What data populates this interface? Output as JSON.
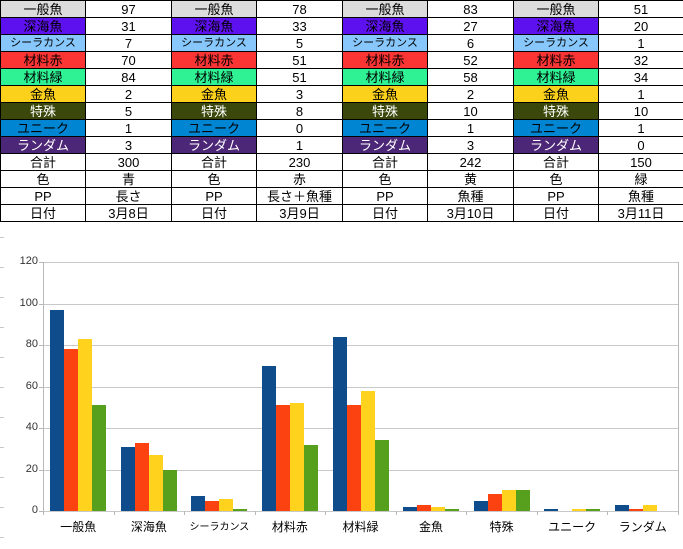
{
  "table": {
    "category_rows": [
      {
        "label": "一般魚",
        "bg": "#DCDCDC",
        "fg": "#000000",
        "values": [
          "97",
          "78",
          "83",
          "51"
        ]
      },
      {
        "label": "深海魚",
        "bg": "#5E11EF",
        "fg": "#000000",
        "values": [
          "31",
          "33",
          "27",
          "20"
        ]
      },
      {
        "label": "シーラカンス",
        "bg": "#87C7FB",
        "fg": "#000000",
        "values": [
          "7",
          "5",
          "6",
          "1"
        ]
      },
      {
        "label": "材料赤",
        "bg": "#FB3434",
        "fg": "#000000",
        "values": [
          "70",
          "51",
          "52",
          "32"
        ]
      },
      {
        "label": "材料緑",
        "bg": "#2FF294",
        "fg": "#000000",
        "values": [
          "84",
          "51",
          "58",
          "34"
        ]
      },
      {
        "label": "金魚",
        "bg": "#FCD11B",
        "fg": "#000000",
        "values": [
          "2",
          "3",
          "2",
          "1"
        ]
      },
      {
        "label": "特殊",
        "bg": "#3A490B",
        "fg": "#FFFFFF",
        "values": [
          "5",
          "8",
          "10",
          "10"
        ]
      },
      {
        "label": "ユニーク",
        "bg": "#0085D3",
        "fg": "#000000",
        "values": [
          "1",
          "0",
          "1",
          "1"
        ]
      },
      {
        "label": "ランダム",
        "bg": "#4C2777",
        "fg": "#FFFFFF",
        "values": [
          "3",
          "1",
          "3",
          "0"
        ]
      }
    ],
    "summary_rows": [
      {
        "label": "合計",
        "values": [
          "300",
          "230",
          "242",
          "150"
        ]
      },
      {
        "label": "色",
        "values": [
          "青",
          "赤",
          "黄",
          "緑"
        ]
      },
      {
        "label": "PP",
        "values": [
          "長さ",
          "長さ＋魚種",
          "魚種",
          "魚種"
        ]
      },
      {
        "label": "日付",
        "values": [
          "3月8日",
          "3月9日",
          "3月10日",
          "3月11日"
        ]
      }
    ]
  },
  "chart_data": {
    "type": "bar",
    "title": "",
    "categories": [
      "一般魚",
      "深海魚",
      "シーラカンス",
      "材料赤",
      "材料緑",
      "金魚",
      "特殊",
      "ユニーク",
      "ランダム"
    ],
    "series": [
      {
        "name": "3月8日",
        "color": "#0E4C8C",
        "values": [
          97,
          31,
          7,
          70,
          84,
          2,
          5,
          1,
          3
        ]
      },
      {
        "name": "3月9日",
        "color": "#FC4210",
        "values": [
          78,
          33,
          5,
          51,
          51,
          3,
          8,
          0,
          1
        ]
      },
      {
        "name": "3月10日",
        "color": "#FFD21E",
        "values": [
          83,
          27,
          6,
          52,
          58,
          2,
          10,
          1,
          3
        ]
      },
      {
        "name": "3月11日",
        "color": "#57A01E",
        "values": [
          51,
          20,
          1,
          32,
          34,
          1,
          10,
          1,
          0
        ]
      }
    ],
    "xlabel": "",
    "ylabel": "",
    "ylim": [
      0,
      120
    ],
    "yticks": [
      0,
      20,
      40,
      60,
      80,
      100,
      120
    ],
    "grid": true,
    "legend_position": "none"
  }
}
